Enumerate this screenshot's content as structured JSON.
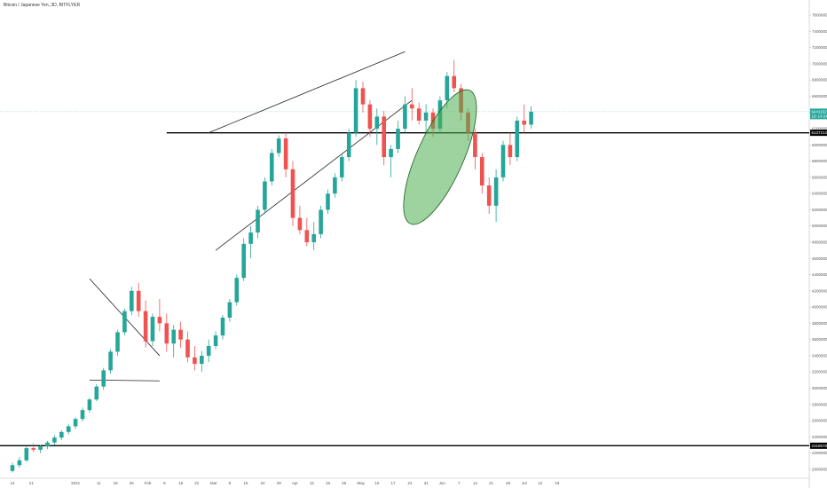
{
  "header": {
    "title": "Bitcoin / Japanese Yen, 3D, BITFLYER"
  },
  "chart_data": {
    "type": "candlestick",
    "title": "Bitcoin / Japanese Yen, 3D, BITFLYER",
    "ylim": [
      1900000,
      7700000
    ],
    "y_ticks": [
      {
        "v": 2000000,
        "label": "2000000"
      },
      {
        "v": 2200000,
        "label": "2200000"
      },
      {
        "v": 2400000,
        "label": "2400000"
      },
      {
        "v": 2600000,
        "label": "2600000"
      },
      {
        "v": 2800000,
        "label": "2800000"
      },
      {
        "v": 3000000,
        "label": "3000000"
      },
      {
        "v": 3200000,
        "label": "3200000"
      },
      {
        "v": 3400000,
        "label": "3400000"
      },
      {
        "v": 3600000,
        "label": "3600000"
      },
      {
        "v": 3800000,
        "label": "3800000"
      },
      {
        "v": 4000000,
        "label": "4000000"
      },
      {
        "v": 4200000,
        "label": "4200000"
      },
      {
        "v": 4400000,
        "label": "4400000"
      },
      {
        "v": 4600000,
        "label": "4600000"
      },
      {
        "v": 4800000,
        "label": "4800000"
      },
      {
        "v": 5000000,
        "label": "5000000"
      },
      {
        "v": 5200000,
        "label": "5200000"
      },
      {
        "v": 5400000,
        "label": "5400000"
      },
      {
        "v": 5600000,
        "label": "5600000"
      },
      {
        "v": 5800000,
        "label": "5800000"
      },
      {
        "v": 6000000,
        "label": "6000000"
      },
      {
        "v": 6200000,
        "label": "6200000"
      },
      {
        "v": 6400000,
        "label": "6400000"
      },
      {
        "v": 6600000,
        "label": "6600000"
      },
      {
        "v": 6800000,
        "label": "6800000"
      },
      {
        "v": 7000000,
        "label": "7000000"
      },
      {
        "v": 7200000,
        "label": "7200000"
      },
      {
        "v": 7400000,
        "label": "7400000"
      },
      {
        "v": 7600000,
        "label": "7600000"
      }
    ],
    "x_ticks": [
      {
        "i": 0,
        "label": "14"
      },
      {
        "i": 2.7,
        "label": "21"
      },
      {
        "i": 9,
        "label": "2021"
      },
      {
        "i": 12.3,
        "label": "11"
      },
      {
        "i": 14.7,
        "label": "18"
      },
      {
        "i": 17,
        "label": "25"
      },
      {
        "i": 19.3,
        "label": "Feb"
      },
      {
        "i": 21.7,
        "label": "8"
      },
      {
        "i": 24,
        "label": "15"
      },
      {
        "i": 26.3,
        "label": "22"
      },
      {
        "i": 28.7,
        "label": "Mar"
      },
      {
        "i": 31,
        "label": "8"
      },
      {
        "i": 33.3,
        "label": "15"
      },
      {
        "i": 35.7,
        "label": "22"
      },
      {
        "i": 38,
        "label": "29"
      },
      {
        "i": 40.3,
        "label": "Apr"
      },
      {
        "i": 42.7,
        "label": "12"
      },
      {
        "i": 45,
        "label": "19"
      },
      {
        "i": 47.3,
        "label": "26"
      },
      {
        "i": 49.7,
        "label": "May"
      },
      {
        "i": 52,
        "label": "10"
      },
      {
        "i": 54.3,
        "label": "17"
      },
      {
        "i": 56.7,
        "label": "24"
      },
      {
        "i": 59,
        "label": "31"
      },
      {
        "i": 61.3,
        "label": "Jun"
      },
      {
        "i": 63.7,
        "label": "7"
      },
      {
        "i": 66,
        "label": "14"
      },
      {
        "i": 68.3,
        "label": "21"
      },
      {
        "i": 70.7,
        "label": "28"
      },
      {
        "i": 73,
        "label": "Jul"
      },
      {
        "i": 75.3,
        "label": "12"
      },
      {
        "i": 77.7,
        "label": "19"
      }
    ],
    "candles": [
      [
        1980000,
        2080000,
        1960000,
        2050000
      ],
      [
        2050000,
        2150000,
        2020000,
        2110000
      ],
      [
        2110000,
        2280000,
        2090000,
        2260000
      ],
      [
        2260000,
        2320000,
        2210000,
        2240000
      ],
      [
        2240000,
        2300000,
        2200000,
        2280000
      ],
      [
        2280000,
        2350000,
        2250000,
        2330000
      ],
      [
        2330000,
        2420000,
        2300000,
        2390000
      ],
      [
        2390000,
        2480000,
        2360000,
        2460000
      ],
      [
        2460000,
        2560000,
        2430000,
        2530000
      ],
      [
        2530000,
        2640000,
        2500000,
        2620000
      ],
      [
        2620000,
        2760000,
        2590000,
        2730000
      ],
      [
        2730000,
        2880000,
        2700000,
        2860000
      ],
      [
        2860000,
        3050000,
        2840000,
        3020000
      ],
      [
        3020000,
        3250000,
        2980000,
        3220000
      ],
      [
        3220000,
        3480000,
        3180000,
        3450000
      ],
      [
        3450000,
        3720000,
        3400000,
        3690000
      ],
      [
        3690000,
        3980000,
        3650000,
        3950000
      ],
      [
        3950000,
        4250000,
        3900000,
        4200000
      ],
      [
        4200000,
        4300000,
        3880000,
        3950000
      ],
      [
        3950000,
        4080000,
        3500000,
        3580000
      ],
      [
        3580000,
        3920000,
        3520000,
        3880000
      ],
      [
        3880000,
        4100000,
        3700000,
        3800000
      ],
      [
        3800000,
        3920000,
        3450000,
        3550000
      ],
      [
        3550000,
        3780000,
        3380000,
        3720000
      ],
      [
        3720000,
        3820000,
        3500000,
        3600000
      ],
      [
        3600000,
        3700000,
        3320000,
        3380000
      ],
      [
        3380000,
        3520000,
        3220000,
        3300000
      ],
      [
        3300000,
        3460000,
        3200000,
        3400000
      ],
      [
        3400000,
        3600000,
        3320000,
        3520000
      ],
      [
        3520000,
        3700000,
        3480000,
        3650000
      ],
      [
        3650000,
        3900000,
        3600000,
        3870000
      ],
      [
        3870000,
        4100000,
        3820000,
        4060000
      ],
      [
        4060000,
        4400000,
        4020000,
        4360000
      ],
      [
        4360000,
        4850000,
        4320000,
        4780000
      ],
      [
        4780000,
        5000000,
        4600000,
        4920000
      ],
      [
        4920000,
        5250000,
        4850000,
        5200000
      ],
      [
        5200000,
        5600000,
        5150000,
        5550000
      ],
      [
        5550000,
        5950000,
        5500000,
        5900000
      ],
      [
        5900000,
        6120000,
        5850000,
        6080000
      ],
      [
        6080000,
        6150000,
        5600000,
        5700000
      ],
      [
        5700000,
        5800000,
        5000000,
        5100000
      ],
      [
        5100000,
        5250000,
        4900000,
        4950000
      ],
      [
        4950000,
        5100000,
        4750000,
        4800000
      ],
      [
        4800000,
        5050000,
        4700000,
        4900000
      ],
      [
        4900000,
        5250000,
        4850000,
        5200000
      ],
      [
        5200000,
        5450000,
        5150000,
        5400000
      ],
      [
        5400000,
        5650000,
        5350000,
        5600000
      ],
      [
        5600000,
        5900000,
        5550000,
        5850000
      ],
      [
        5850000,
        6200000,
        5800000,
        6150000
      ],
      [
        6150000,
        6800000,
        6100000,
        6700000
      ],
      [
        6700000,
        6780000,
        6400000,
        6500000
      ],
      [
        6500000,
        6550000,
        6100000,
        6200000
      ],
      [
        6200000,
        6450000,
        6000000,
        6350000
      ],
      [
        6350000,
        6420000,
        5750000,
        5850000
      ],
      [
        5850000,
        6000000,
        5600000,
        5950000
      ],
      [
        5950000,
        6300000,
        5900000,
        6200000
      ],
      [
        6200000,
        6600000,
        6150000,
        6500000
      ],
      [
        6500000,
        6700000,
        6300000,
        6450000
      ],
      [
        6450000,
        6520000,
        6250000,
        6300000
      ],
      [
        6300000,
        6500000,
        6150000,
        6400000
      ],
      [
        6400000,
        6450000,
        6100000,
        6200000
      ],
      [
        6200000,
        6600000,
        6150000,
        6550000
      ],
      [
        6550000,
        6900000,
        6450000,
        6850000
      ],
      [
        6850000,
        7050000,
        6650000,
        6700000
      ],
      [
        6700000,
        6750000,
        6300000,
        6400000
      ],
      [
        6400000,
        6450000,
        6050000,
        6150000
      ],
      [
        6150000,
        6200000,
        5700000,
        5850000
      ],
      [
        5850000,
        5900000,
        5400000,
        5500000
      ],
      [
        5500000,
        5600000,
        5150000,
        5250000
      ],
      [
        5250000,
        5700000,
        5050000,
        5600000
      ],
      [
        5600000,
        6050000,
        5550000,
        6000000
      ],
      [
        6000000,
        6150000,
        5750000,
        5850000
      ],
      [
        5850000,
        6350000,
        5800000,
        6300000
      ],
      [
        6300000,
        6500000,
        6150000,
        6250000
      ],
      [
        6250000,
        6480000,
        6200000,
        6410000
      ]
    ],
    "price_labels": [
      {
        "price": 6410000,
        "text": "6441152",
        "sub": "1D 14:24",
        "color": "#26a69a"
      },
      {
        "price": 6150000,
        "text": "6137212",
        "color": "#000000"
      },
      {
        "price": 2290000,
        "text": "2318678",
        "color": "#000000"
      }
    ],
    "horizontal_lines": [
      {
        "price": 6150000,
        "from_i": 22
      },
      {
        "price": 2290000,
        "from_i": -5
      }
    ],
    "trend_lines": [
      {
        "from": [
          11,
          4350000
        ],
        "to": [
          21,
          3400000
        ]
      },
      {
        "from": [
          11,
          3100000
        ],
        "to": [
          21,
          3090000
        ]
      },
      {
        "from": [
          29,
          4700000
        ],
        "to": [
          57,
          6550000
        ]
      },
      {
        "from": [
          28,
          6150000
        ],
        "to": [
          56,
          7150000
        ]
      }
    ],
    "highlight_ellipse": {
      "center": [
        61,
        5850000
      ],
      "rx_days": 6,
      "ry_price": 900000,
      "color": "#4caf50"
    },
    "grid": false,
    "legend": "none"
  }
}
